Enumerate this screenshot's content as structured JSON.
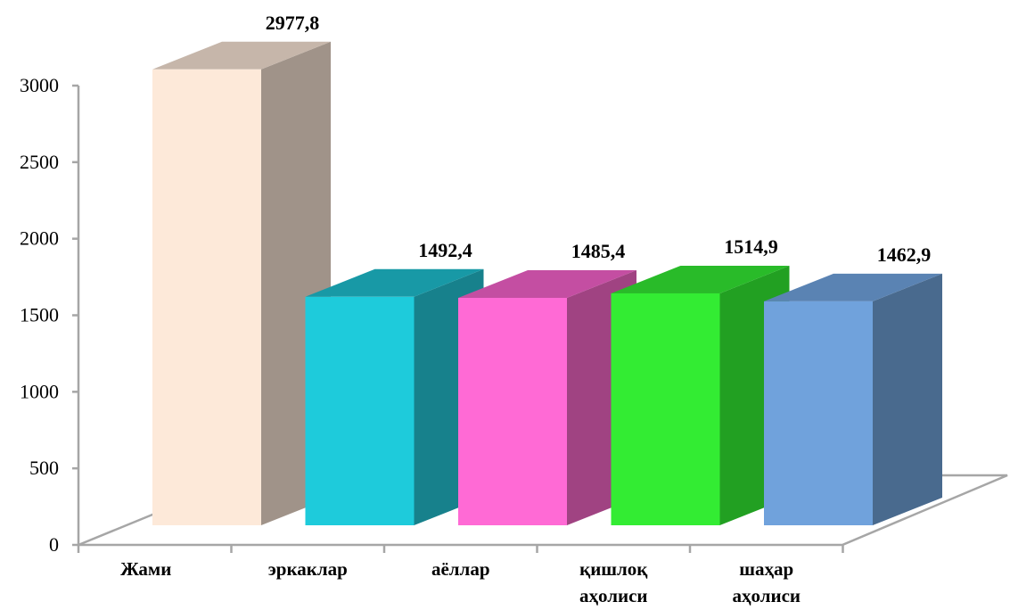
{
  "chart_data": {
    "type": "bar",
    "title": "",
    "xlabel": "",
    "ylabel": "",
    "ylim": [
      0,
      3000
    ],
    "y_ticks": [
      "0",
      "500",
      "1000",
      "1500",
      "2000",
      "2500",
      "3000"
    ],
    "y_tick_values": [
      0,
      500,
      1000,
      1500,
      2000,
      2500,
      3000
    ],
    "categories": [
      [
        "Жами"
      ],
      [
        "эркаклар"
      ],
      [
        "аёллар"
      ],
      [
        "қишлоқ",
        "аҳолиси"
      ],
      [
        "шаҳар",
        "аҳолиси"
      ]
    ],
    "values": [
      2977.8,
      1492.4,
      1485.4,
      1514.9,
      1462.9
    ],
    "value_labels": [
      "2977,8",
      "1492,4",
      "1485,4",
      "1514,9",
      "1462,9"
    ],
    "grid": false,
    "legend": "none",
    "style": "3d-columns",
    "colors": {
      "front": [
        "#fde9d9",
        "#1ecbdb",
        "#ff6ad5",
        "#33ec33",
        "#70a2dc"
      ],
      "side": [
        "#a09389",
        "#17818c",
        "#a04382",
        "#22a022",
        "#496a8e"
      ],
      "top": [
        "#c6b6aa",
        "#1899a6",
        "#c44ea2",
        "#29bb29",
        "#5a83b3"
      ]
    }
  }
}
